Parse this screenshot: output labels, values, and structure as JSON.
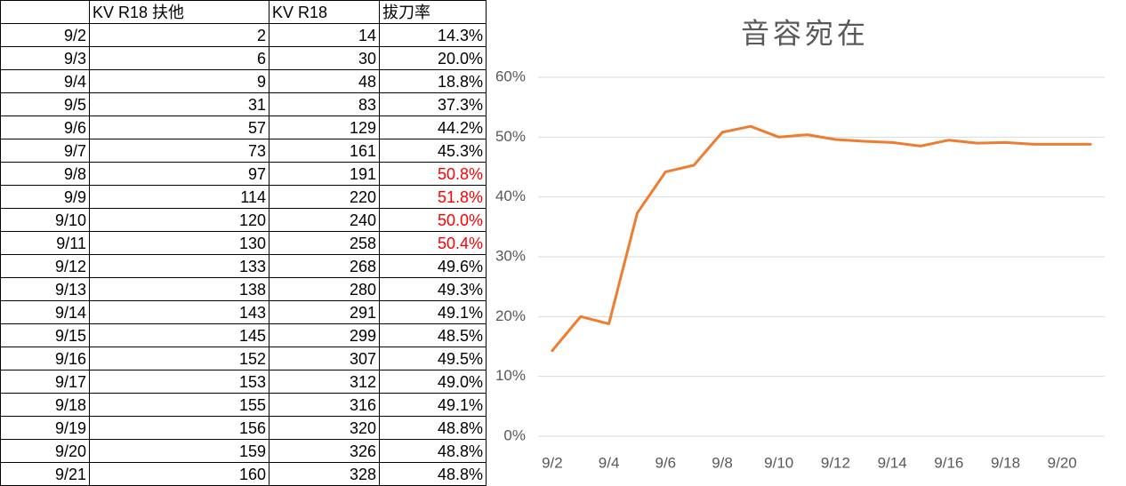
{
  "table": {
    "header": [
      "KV R18 扶他",
      "KV R18",
      "拔刀率"
    ],
    "rows": [
      [
        "9/2",
        2,
        14,
        "14.3%"
      ],
      [
        "9/3",
        6,
        30,
        "20.0%"
      ],
      [
        "9/4",
        9,
        48,
        "18.8%"
      ],
      [
        "9/5",
        31,
        83,
        "37.3%"
      ],
      [
        "9/6",
        57,
        129,
        "44.2%"
      ],
      [
        "9/7",
        73,
        161,
        "45.3%"
      ],
      [
        "9/8",
        97,
        191,
        "50.8%"
      ],
      [
        "9/9",
        114,
        220,
        "51.8%"
      ],
      [
        "9/10",
        120,
        240,
        "50.0%"
      ],
      [
        "9/11",
        130,
        258,
        "50.4%"
      ],
      [
        "9/12",
        133,
        268,
        "49.6%"
      ],
      [
        "9/13",
        138,
        280,
        "49.3%"
      ],
      [
        "9/14",
        143,
        291,
        "49.1%"
      ],
      [
        "9/15",
        145,
        299,
        "48.5%"
      ],
      [
        "9/16",
        152,
        307,
        "49.5%"
      ],
      [
        "9/17",
        153,
        312,
        "49.0%"
      ],
      [
        "9/18",
        155,
        316,
        "49.1%"
      ],
      [
        "9/19",
        156,
        320,
        "48.8%"
      ],
      [
        "9/20",
        159,
        326,
        "48.8%"
      ],
      [
        "9/21",
        160,
        328,
        "48.8%"
      ]
    ],
    "highlight": {
      "color": "#ff0000",
      "rows": [
        6,
        7,
        8,
        9
      ]
    }
  },
  "chart_data": {
    "type": "line",
    "title": "音容宛在",
    "categories": [
      "9/2",
      null,
      "9/4",
      null,
      "9/6",
      null,
      "9/8",
      null,
      "9/10",
      null,
      "9/12",
      null,
      "9/14",
      null,
      "9/16",
      null,
      "9/18",
      null,
      "9/20",
      null
    ],
    "values": [
      14.3,
      20.0,
      18.8,
      37.3,
      44.2,
      45.3,
      50.8,
      51.8,
      50.0,
      50.4,
      49.6,
      49.3,
      49.1,
      48.5,
      49.5,
      49.0,
      49.1,
      48.8,
      48.8,
      48.8
    ],
    "color": "#ed7d31",
    "ylim": [
      0,
      60
    ],
    "yticks": [
      {
        "value": 0,
        "label": "0%"
      },
      {
        "value": 10,
        "label": "10%"
      },
      {
        "value": 20,
        "label": "20%"
      },
      {
        "value": 30,
        "label": "30%"
      },
      {
        "value": 40,
        "label": "40%"
      },
      {
        "value": 50,
        "label": "50%"
      },
      {
        "value": 60,
        "label": "60%"
      }
    ],
    "grid": true
  }
}
